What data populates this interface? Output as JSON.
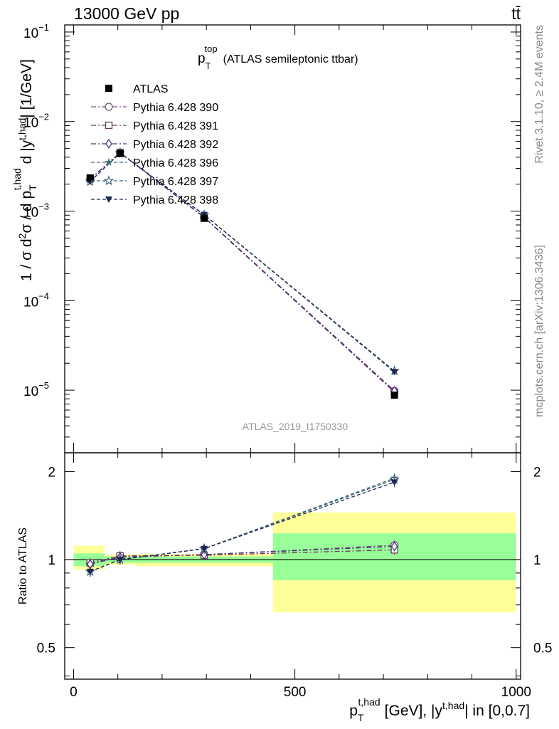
{
  "header": {
    "energy_label": "13000 GeV pp",
    "process_label": "tt̄"
  },
  "side_labels": {
    "rivet": "Rivet 3.1.10, ≥ 2.4M events",
    "source": "mcplots.cern.ch [arXiv:1306.3436]"
  },
  "chart_data": [
    {
      "type": "line",
      "title": "p_T^top (ATLAS semileptonic ttbar)",
      "title_main": "p",
      "title_sub": "T",
      "title_sup": "top",
      "title_rest": "(ATLAS semileptonic ttbar)",
      "ylabel": "1 / σ d²σ / d p_T^{t,had} d |y^{t,had}| [1/GeV]",
      "yscale": "log",
      "ylim": [
        2e-06,
        0.12
      ],
      "xlim": [
        -20,
        1010
      ],
      "y_ticks": [
        1e-05,
        0.0001,
        0.001,
        0.01,
        0.1
      ],
      "y_tick_labels": [
        {
          "base": "10",
          "exp": "−5"
        },
        {
          "base": "10",
          "exp": "−4"
        },
        {
          "base": "10",
          "exp": "−3"
        },
        {
          "base": "10",
          "exp": "−2"
        },
        {
          "base": "10",
          "exp": "−1"
        }
      ],
      "watermark": "ATLAS_2019_I1750330",
      "legend_position": "top-left",
      "x": [
        37.5,
        105,
        295,
        725
      ],
      "series": [
        {
          "name": "ATLAS",
          "color": "#000000",
          "marker": "square-filled",
          "dash": "none",
          "values": [
            0.00235,
            0.0044,
            0.00083,
            8.8e-06
          ]
        },
        {
          "name": "Pythia 6.428 390",
          "color": "#7a4f86",
          "marker": "circle-open",
          "dash": "dashdot",
          "values": [
            0.00228,
            0.0045,
            0.00085,
            9.8e-06
          ]
        },
        {
          "name": "Pythia 6.428 391",
          "color": "#6b3a56",
          "marker": "square-open",
          "dash": "dashdot",
          "values": [
            0.00229,
            0.0045,
            0.00085,
            9.5e-06
          ]
        },
        {
          "name": "Pythia 6.428 392",
          "color": "#4a2f7a",
          "marker": "diamond-open",
          "dash": "dashdot",
          "values": [
            0.00228,
            0.0045,
            0.00086,
            9.8e-06
          ]
        },
        {
          "name": "Pythia 6.428 396",
          "color": "#3f6f7c",
          "marker": "star-filled",
          "dash": "dashed",
          "values": [
            0.00214,
            0.00445,
            0.00091,
            1.62e-05
          ]
        },
        {
          "name": "Pythia 6.428 397",
          "color": "#3c5f74",
          "marker": "star-open",
          "dash": "dashed",
          "values": [
            0.00214,
            0.00445,
            0.00091,
            1.64e-05
          ]
        },
        {
          "name": "Pythia 6.428 398",
          "color": "#1d2750",
          "marker": "triangle-down-filled",
          "dash": "dashed",
          "values": [
            0.00214,
            0.00445,
            0.00091,
            1.6e-05
          ]
        }
      ]
    },
    {
      "type": "line",
      "ylabel": "Ratio to ATLAS",
      "xlabel": "p_T^{t,had} [GeV], |y^{t,had}| in [0,0.7]",
      "xlabel_main": "p",
      "xlabel_sub": "T",
      "xlabel_sup": "t,had",
      "xlabel_mid": "[GeV], |y",
      "xlabel_sup2": "t,had",
      "xlabel_end": "| in [0,0.7]",
      "yscale": "log",
      "ylim": [
        0.39,
        2.32
      ],
      "xlim": [
        -20,
        1010
      ],
      "y_ticks": [
        0.5,
        1,
        2
      ],
      "y_tick_labels": [
        "0.5",
        "1",
        "2"
      ],
      "x_ticks": [
        0,
        500,
        1000
      ],
      "x_tick_labels": [
        "0",
        "500",
        "1000"
      ],
      "bins": [
        {
          "lo": 0,
          "hi": 70,
          "band_inner": [
            0.95,
            1.05
          ],
          "band_outer": [
            0.925,
            1.115
          ]
        },
        {
          "lo": 70,
          "hi": 140,
          "band_inner": [
            0.975,
            1.025
          ],
          "band_outer": [
            0.96,
            1.04
          ]
        },
        {
          "lo": 140,
          "hi": 450,
          "band_inner": [
            0.975,
            1.025
          ],
          "band_outer": [
            0.95,
            1.045
          ]
        },
        {
          "lo": 450,
          "hi": 1000,
          "band_inner": [
            0.85,
            1.23
          ],
          "band_outer": [
            0.66,
            1.45
          ]
        }
      ],
      "x": [
        37.5,
        105,
        295,
        725
      ],
      "series": [
        {
          "name": "Pythia 6.428 390",
          "values": [
            0.97,
            1.02,
            1.04,
            1.12
          ]
        },
        {
          "name": "Pythia 6.428 391",
          "values": [
            0.975,
            1.03,
            1.035,
            1.08
          ]
        },
        {
          "name": "Pythia 6.428 392",
          "values": [
            0.965,
            1.02,
            1.04,
            1.11
          ]
        },
        {
          "name": "Pythia 6.428 396",
          "values": [
            0.91,
            1.0,
            1.09,
            1.9
          ]
        },
        {
          "name": "Pythia 6.428 397",
          "values": [
            0.91,
            1.0,
            1.09,
            1.88
          ]
        },
        {
          "name": "Pythia 6.428 398",
          "values": [
            0.91,
            1.0,
            1.09,
            1.84
          ]
        }
      ]
    }
  ]
}
